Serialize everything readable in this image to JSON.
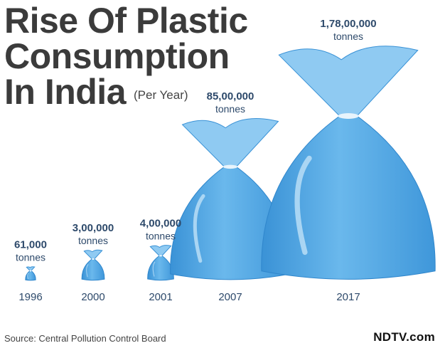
{
  "title_lines": [
    "Rise Of Plastic",
    "Consumption",
    "In India"
  ],
  "subtitle": "(Per Year)",
  "chart_data": {
    "type": "bar",
    "title": "Rise Of Plastic Consumption In India",
    "subtitle": "(Per Year)",
    "categories": [
      "1996",
      "2000",
      "2001",
      "2007",
      "2017"
    ],
    "values": [
      61000,
      300000,
      400000,
      8500000,
      17800000
    ],
    "value_labels": [
      "61,000",
      "3,00,000",
      "4,00,000",
      "85,00,000",
      "1,78,00,000"
    ],
    "unit": "tonnes",
    "marker": "plastic-bag",
    "colors": {
      "bag": "#4aa3e0",
      "bag_light": "#8fcaf2",
      "label": "#2e4a6b"
    }
  },
  "footer": {
    "source": "Source: Central Pollution Control Board",
    "brand": "NDTV.com"
  }
}
